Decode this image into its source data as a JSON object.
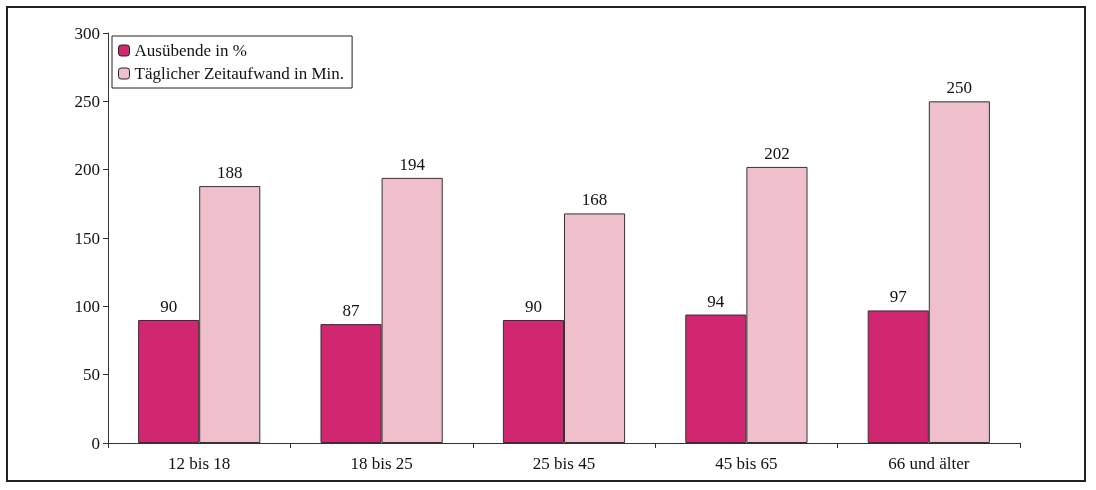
{
  "chart_data": {
    "type": "bar",
    "categories": [
      "12 bis 18",
      "18 bis 25",
      "25 bis 45",
      "45 bis 65",
      "66 und älter"
    ],
    "series": [
      {
        "name": "Ausübende in %",
        "color": "#d12670",
        "values": [
          90,
          87,
          90,
          94,
          97
        ]
      },
      {
        "name": "Täglicher Zeitaufwand in Min.",
        "color": "#efbfcb",
        "values": [
          188,
          194,
          168,
          202,
          250
        ]
      }
    ],
    "ylim": [
      0,
      300
    ],
    "yticks": [
      0,
      50,
      100,
      150,
      200,
      250,
      300
    ],
    "grid": false,
    "legend": "top left",
    "data_labels": true
  }
}
